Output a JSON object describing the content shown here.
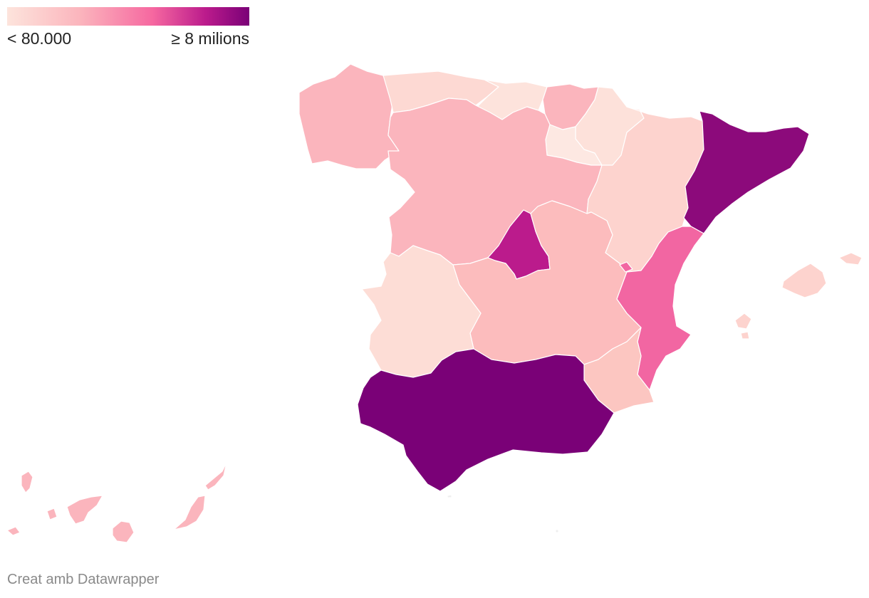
{
  "legend": {
    "min_label": "< 80.000",
    "max_label": "≥ 8 milions",
    "colors": [
      "#fde4dc",
      "#fbb5bd",
      "#f668a0",
      "#bb1b8c",
      "#7a0177"
    ]
  },
  "credit": "Creat amb Datawrapper",
  "regions": [
    {
      "id": "galicia",
      "fill": "#fbb5bd"
    },
    {
      "id": "asturias",
      "fill": "#fdd9d3"
    },
    {
      "id": "cantabria",
      "fill": "#fde3dc"
    },
    {
      "id": "pais-basc",
      "fill": "#fbb5bd"
    },
    {
      "id": "navarra",
      "fill": "#fde1da"
    },
    {
      "id": "la-rioja",
      "fill": "#fde8e2"
    },
    {
      "id": "castella-lleo",
      "fill": "#fbb5bd"
    },
    {
      "id": "arago",
      "fill": "#fdd3ce"
    },
    {
      "id": "catalunya",
      "fill": "#8c0a7b"
    },
    {
      "id": "madrid",
      "fill": "#bb1b8c"
    },
    {
      "id": "castella-la-manxa",
      "fill": "#fcbcbd"
    },
    {
      "id": "extremadura",
      "fill": "#fdddd6"
    },
    {
      "id": "comunitat-valenciana",
      "fill": "#f266a2"
    },
    {
      "id": "murcia",
      "fill": "#fcc6c1"
    },
    {
      "id": "andalusia",
      "fill": "#7a0177"
    },
    {
      "id": "illes-balears",
      "fill": "#fdd3ce"
    },
    {
      "id": "canaries",
      "fill": "#fbb5bd"
    },
    {
      "id": "ceuta",
      "fill": "#eeeeee"
    },
    {
      "id": "melilla",
      "fill": "#eeeeee"
    }
  ]
}
